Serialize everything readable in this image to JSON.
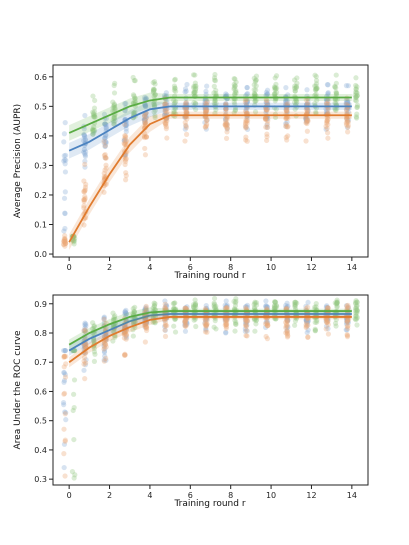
{
  "chart_data": [
    {
      "type": "scatter",
      "xlabel": "Training round r",
      "ylabel": "Average Precision (AUPR)",
      "xlim": [
        -0.8,
        14.8
      ],
      "ylim": [
        -0.01,
        0.64
      ],
      "xticks": [
        0,
        2,
        4,
        6,
        8,
        10,
        12,
        14
      ],
      "yticks": [
        0.0,
        0.1,
        0.2,
        0.3,
        0.4,
        0.5,
        0.6
      ],
      "ytick_labels": [
        "0.0",
        "0.1",
        "0.2",
        "0.3",
        "0.4",
        "0.5",
        "0.6"
      ],
      "grid": false,
      "series": [
        {
          "color": "#4c83c0",
          "x": [
            0,
            1,
            2,
            3,
            4,
            5,
            6,
            7,
            8,
            9,
            10,
            11,
            12,
            13,
            14
          ],
          "trend": [
            0.35,
            0.38,
            0.42,
            0.46,
            0.49,
            0.5,
            0.5,
            0.5,
            0.5,
            0.5,
            0.5,
            0.5,
            0.5,
            0.5,
            0.5
          ],
          "pt_min": [
            0.0,
            0.25,
            0.3,
            0.33,
            0.38,
            0.42,
            0.42,
            0.42,
            0.42,
            0.42,
            0.42,
            0.42,
            0.42,
            0.42,
            0.42
          ],
          "pt_max": [
            0.45,
            0.47,
            0.5,
            0.53,
            0.56,
            0.58,
            0.58,
            0.58,
            0.58,
            0.58,
            0.58,
            0.58,
            0.58,
            0.58,
            0.58
          ]
        },
        {
          "color": "#e07b2e",
          "x": [
            0,
            1,
            2,
            3,
            4,
            5,
            6,
            7,
            8,
            9,
            10,
            11,
            12,
            13,
            14
          ],
          "trend": [
            0.04,
            0.16,
            0.27,
            0.37,
            0.44,
            0.47,
            0.47,
            0.47,
            0.47,
            0.47,
            0.47,
            0.47,
            0.47,
            0.47,
            0.47
          ],
          "pt_min": [
            0.02,
            0.07,
            0.15,
            0.25,
            0.33,
            0.38,
            0.38,
            0.38,
            0.38,
            0.38,
            0.38,
            0.38,
            0.38,
            0.38,
            0.38
          ],
          "pt_max": [
            0.07,
            0.33,
            0.4,
            0.45,
            0.5,
            0.53,
            0.53,
            0.53,
            0.53,
            0.53,
            0.53,
            0.53,
            0.53,
            0.53,
            0.53
          ]
        },
        {
          "color": "#5aac44",
          "x": [
            0,
            1,
            2,
            3,
            4,
            5,
            6,
            7,
            8,
            9,
            10,
            11,
            12,
            13,
            14
          ],
          "trend": [
            0.41,
            0.44,
            0.47,
            0.5,
            0.52,
            0.53,
            0.53,
            0.53,
            0.53,
            0.53,
            0.53,
            0.53,
            0.53,
            0.53,
            0.53
          ],
          "pt_min": [
            0.02,
            0.4,
            0.44,
            0.46,
            0.46,
            0.46,
            0.46,
            0.46,
            0.46,
            0.46,
            0.46,
            0.46,
            0.46,
            0.46,
            0.46
          ],
          "pt_max": [
            0.06,
            0.56,
            0.58,
            0.6,
            0.61,
            0.61,
            0.61,
            0.61,
            0.61,
            0.61,
            0.61,
            0.61,
            0.61,
            0.61,
            0.61
          ]
        }
      ]
    },
    {
      "type": "scatter",
      "xlabel": "Training round r",
      "ylabel": "Area Under the ROC curve",
      "xlim": [
        -0.8,
        14.8
      ],
      "ylim": [
        0.28,
        0.93
      ],
      "xticks": [
        0,
        2,
        4,
        6,
        8,
        10,
        12,
        14
      ],
      "yticks": [
        0.3,
        0.4,
        0.5,
        0.6,
        0.7,
        0.8,
        0.9
      ],
      "ytick_labels": [
        "0.3",
        "0.4",
        "0.5",
        "0.6",
        "0.7",
        "0.8",
        "0.9"
      ],
      "grid": false,
      "series": [
        {
          "color": "#4c83c0",
          "x": [
            0,
            1,
            2,
            3,
            4,
            5,
            6,
            7,
            8,
            9,
            10,
            11,
            12,
            13,
            14
          ],
          "trend": [
            0.74,
            0.78,
            0.81,
            0.84,
            0.86,
            0.865,
            0.865,
            0.865,
            0.865,
            0.865,
            0.865,
            0.865,
            0.865,
            0.865,
            0.865
          ],
          "pt_min": [
            0.3,
            0.62,
            0.7,
            0.76,
            0.79,
            0.8,
            0.8,
            0.8,
            0.8,
            0.8,
            0.8,
            0.8,
            0.8,
            0.8,
            0.8
          ],
          "pt_max": [
            0.74,
            0.84,
            0.87,
            0.89,
            0.9,
            0.91,
            0.91,
            0.91,
            0.91,
            0.91,
            0.91,
            0.91,
            0.91,
            0.91,
            0.91
          ]
        },
        {
          "color": "#e07b2e",
          "x": [
            0,
            1,
            2,
            3,
            4,
            5,
            6,
            7,
            8,
            9,
            10,
            11,
            12,
            13,
            14
          ],
          "trend": [
            0.7,
            0.75,
            0.79,
            0.82,
            0.845,
            0.855,
            0.855,
            0.855,
            0.855,
            0.855,
            0.855,
            0.855,
            0.855,
            0.855,
            0.855
          ],
          "pt_min": [
            0.3,
            0.64,
            0.7,
            0.72,
            0.76,
            0.78,
            0.78,
            0.78,
            0.78,
            0.78,
            0.78,
            0.78,
            0.78,
            0.78,
            0.78
          ],
          "pt_max": [
            0.72,
            0.82,
            0.86,
            0.88,
            0.9,
            0.9,
            0.9,
            0.9,
            0.9,
            0.9,
            0.9,
            0.9,
            0.9,
            0.9,
            0.9
          ]
        },
        {
          "color": "#5aac44",
          "x": [
            0,
            1,
            2,
            3,
            4,
            5,
            6,
            7,
            8,
            9,
            10,
            11,
            12,
            13,
            14
          ],
          "trend": [
            0.76,
            0.8,
            0.83,
            0.855,
            0.87,
            0.875,
            0.875,
            0.875,
            0.875,
            0.875,
            0.875,
            0.875,
            0.875,
            0.875,
            0.875
          ],
          "pt_min": [
            0.3,
            0.68,
            0.74,
            0.78,
            0.8,
            0.8,
            0.8,
            0.8,
            0.8,
            0.8,
            0.8,
            0.8,
            0.8,
            0.8,
            0.8
          ],
          "pt_max": [
            0.74,
            0.86,
            0.89,
            0.9,
            0.91,
            0.92,
            0.92,
            0.92,
            0.92,
            0.92,
            0.92,
            0.92,
            0.92,
            0.92,
            0.92
          ]
        }
      ]
    }
  ]
}
